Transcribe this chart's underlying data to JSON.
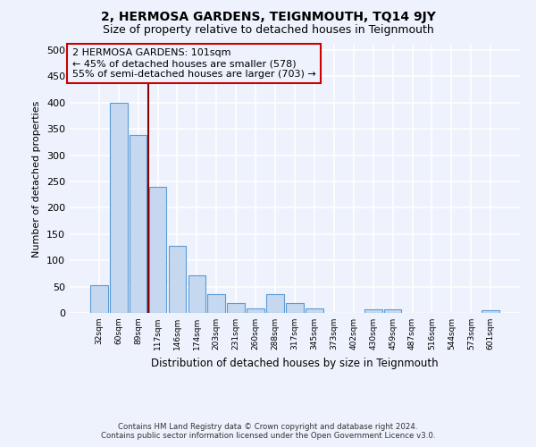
{
  "title": "2, HERMOSA GARDENS, TEIGNMOUTH, TQ14 9JY",
  "subtitle": "Size of property relative to detached houses in Teignmouth",
  "xlabel": "Distribution of detached houses by size in Teignmouth",
  "ylabel": "Number of detached properties",
  "footer_line1": "Contains HM Land Registry data © Crown copyright and database right 2024.",
  "footer_line2": "Contains public sector information licensed under the Open Government Licence v3.0.",
  "categories": [
    "32sqm",
    "60sqm",
    "89sqm",
    "117sqm",
    "146sqm",
    "174sqm",
    "203sqm",
    "231sqm",
    "260sqm",
    "288sqm",
    "317sqm",
    "345sqm",
    "373sqm",
    "402sqm",
    "430sqm",
    "459sqm",
    "487sqm",
    "516sqm",
    "544sqm",
    "573sqm",
    "601sqm"
  ],
  "values": [
    52,
    400,
    338,
    240,
    128,
    72,
    35,
    18,
    8,
    35,
    18,
    8,
    0,
    0,
    6,
    6,
    0,
    0,
    0,
    0,
    5
  ],
  "bar_color": "#c5d8f0",
  "bar_edge_color": "#5b9bd5",
  "annotation_text": "2 HERMOSA GARDENS: 101sqm\n← 45% of detached houses are smaller (578)\n55% of semi-detached houses are larger (703) →",
  "annotation_box_edge_color": "#cc0000",
  "vline_color": "#8b0000",
  "vline_x": 2.5,
  "ylim": [
    0,
    510
  ],
  "yticks": [
    0,
    50,
    100,
    150,
    200,
    250,
    300,
    350,
    400,
    450,
    500
  ],
  "background_color": "#eef2fc",
  "grid_color": "#ffffff",
  "title_fontsize": 10,
  "subtitle_fontsize": 9,
  "annot_fontsize": 8
}
